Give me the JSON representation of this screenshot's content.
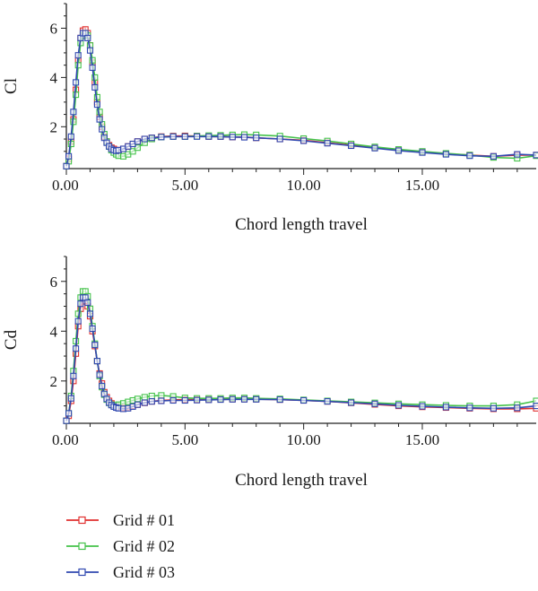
{
  "chart_data": [
    {
      "type": "line",
      "ylabel": "Cl",
      "xlabel": "Chord length travel",
      "xlim": [
        0,
        19.8
      ],
      "ylim": [
        0.3,
        7
      ],
      "x_ticks": [
        0,
        5,
        10,
        15
      ],
      "x_tick_labels": [
        "0.00",
        "5.00",
        "10.00",
        "15.00"
      ],
      "y_ticks": [
        2,
        4,
        6
      ],
      "y_tick_labels": [
        "2",
        "4",
        "6"
      ],
      "grid": false,
      "series": [
        {
          "name": "Grid # 01",
          "color": "#e0302f",
          "x": [
            0.0,
            0.1,
            0.2,
            0.3,
            0.4,
            0.5,
            0.6,
            0.7,
            0.8,
            0.9,
            1.0,
            1.1,
            1.2,
            1.3,
            1.4,
            1.5,
            1.6,
            1.7,
            1.8,
            1.9,
            2.0,
            2.1,
            2.2,
            2.4,
            2.6,
            2.8,
            3.0,
            3.3,
            3.6,
            4.0,
            4.5,
            5.0,
            5.5,
            6.0,
            6.5,
            7.0,
            7.5,
            8.0,
            9.0,
            10.0,
            11.0,
            12.0,
            13.0,
            14.0,
            15.0,
            16.0,
            17.0,
            18.0,
            19.0,
            19.8
          ],
          "y": [
            0.4,
            0.7,
            1.4,
            2.3,
            3.5,
            4.7,
            5.6,
            5.9,
            5.95,
            5.8,
            5.3,
            4.6,
            3.8,
            3.0,
            2.4,
            2.0,
            1.6,
            1.4,
            1.25,
            1.15,
            1.1,
            1.05,
            1.05,
            1.1,
            1.2,
            1.3,
            1.4,
            1.5,
            1.55,
            1.6,
            1.62,
            1.63,
            1.62,
            1.6,
            1.6,
            1.58,
            1.58,
            1.55,
            1.5,
            1.45,
            1.35,
            1.25,
            1.15,
            1.05,
            0.98,
            0.9,
            0.85,
            0.8,
            0.85,
            0.85
          ]
        },
        {
          "name": "Grid # 02",
          "color": "#44c24a",
          "x": [
            0.0,
            0.1,
            0.2,
            0.3,
            0.4,
            0.5,
            0.6,
            0.7,
            0.8,
            0.9,
            1.0,
            1.1,
            1.2,
            1.3,
            1.4,
            1.5,
            1.6,
            1.7,
            1.8,
            1.9,
            2.0,
            2.1,
            2.2,
            2.4,
            2.6,
            2.8,
            3.0,
            3.3,
            3.6,
            4.0,
            4.5,
            5.0,
            5.5,
            6.0,
            6.5,
            7.0,
            7.5,
            8.0,
            9.0,
            10.0,
            11.0,
            12.0,
            13.0,
            14.0,
            15.0,
            16.0,
            17.0,
            18.0,
            19.0,
            19.8
          ],
          "y": [
            0.4,
            0.6,
            1.3,
            2.2,
            3.3,
            4.5,
            5.4,
            5.7,
            5.8,
            5.7,
            5.3,
            4.7,
            4.0,
            3.2,
            2.6,
            2.1,
            1.7,
            1.4,
            1.2,
            1.05,
            0.95,
            0.88,
            0.82,
            0.8,
            0.88,
            1.0,
            1.15,
            1.35,
            1.5,
            1.58,
            1.6,
            1.6,
            1.62,
            1.64,
            1.65,
            1.67,
            1.68,
            1.67,
            1.62,
            1.52,
            1.42,
            1.3,
            1.18,
            1.08,
            1.0,
            0.92,
            0.85,
            0.75,
            0.72,
            0.82
          ]
        },
        {
          "name": "Grid # 03",
          "color": "#3048b0",
          "x": [
            0.0,
            0.1,
            0.2,
            0.3,
            0.4,
            0.5,
            0.6,
            0.7,
            0.8,
            0.9,
            1.0,
            1.1,
            1.2,
            1.3,
            1.4,
            1.5,
            1.6,
            1.7,
            1.8,
            1.9,
            2.0,
            2.1,
            2.2,
            2.4,
            2.6,
            2.8,
            3.0,
            3.3,
            3.6,
            4.0,
            4.5,
            5.0,
            5.5,
            6.0,
            6.5,
            7.0,
            7.5,
            8.0,
            9.0,
            10.0,
            11.0,
            12.0,
            13.0,
            14.0,
            15.0,
            16.0,
            17.0,
            18.0,
            19.0,
            19.8
          ],
          "y": [
            0.4,
            0.8,
            1.6,
            2.6,
            3.8,
            4.9,
            5.6,
            5.8,
            5.8,
            5.6,
            5.1,
            4.4,
            3.6,
            2.9,
            2.3,
            1.9,
            1.55,
            1.35,
            1.2,
            1.1,
            1.05,
            1.02,
            1.05,
            1.1,
            1.2,
            1.3,
            1.4,
            1.5,
            1.55,
            1.58,
            1.6,
            1.6,
            1.6,
            1.6,
            1.6,
            1.58,
            1.57,
            1.55,
            1.5,
            1.43,
            1.33,
            1.23,
            1.13,
            1.03,
            0.95,
            0.88,
            0.82,
            0.8,
            0.88,
            0.85
          ]
        }
      ]
    },
    {
      "type": "line",
      "ylabel": "Cd",
      "xlabel": "Chord length travel",
      "xlim": [
        0,
        19.8
      ],
      "ylim": [
        0.3,
        7
      ],
      "x_ticks": [
        0,
        5,
        10,
        15
      ],
      "x_tick_labels": [
        "0.00",
        "5.00",
        "10.00",
        "15.00"
      ],
      "y_ticks": [
        2,
        4,
        6
      ],
      "y_tick_labels": [
        "2",
        "4",
        "6"
      ],
      "grid": false,
      "series": [
        {
          "name": "Grid # 01",
          "color": "#e0302f",
          "x": [
            0.0,
            0.1,
            0.2,
            0.3,
            0.4,
            0.5,
            0.6,
            0.7,
            0.8,
            0.9,
            1.0,
            1.1,
            1.2,
            1.3,
            1.4,
            1.5,
            1.6,
            1.7,
            1.8,
            1.9,
            2.0,
            2.1,
            2.2,
            2.4,
            2.6,
            2.8,
            3.0,
            3.3,
            3.6,
            4.0,
            4.5,
            5.0,
            5.5,
            6.0,
            6.5,
            7.0,
            7.5,
            8.0,
            9.0,
            10.0,
            11.0,
            12.0,
            13.0,
            14.0,
            15.0,
            16.0,
            17.0,
            18.0,
            19.0,
            19.8
          ],
          "y": [
            0.4,
            0.6,
            1.2,
            2.0,
            3.1,
            4.2,
            4.9,
            5.2,
            5.2,
            5.0,
            4.6,
            4.0,
            3.4,
            2.8,
            2.3,
            1.9,
            1.55,
            1.35,
            1.2,
            1.1,
            1.02,
            0.98,
            0.95,
            0.92,
            0.95,
            1.0,
            1.05,
            1.12,
            1.18,
            1.22,
            1.24,
            1.25,
            1.25,
            1.26,
            1.26,
            1.27,
            1.27,
            1.27,
            1.25,
            1.22,
            1.18,
            1.12,
            1.06,
            1.0,
            0.96,
            0.93,
            0.9,
            0.88,
            0.88,
            0.9
          ]
        },
        {
          "name": "Grid # 02",
          "color": "#44c24a",
          "x": [
            0.0,
            0.1,
            0.2,
            0.3,
            0.4,
            0.5,
            0.6,
            0.7,
            0.8,
            0.9,
            1.0,
            1.1,
            1.2,
            1.3,
            1.4,
            1.5,
            1.6,
            1.7,
            1.8,
            1.9,
            2.0,
            2.1,
            2.2,
            2.4,
            2.6,
            2.8,
            3.0,
            3.3,
            3.6,
            4.0,
            4.5,
            5.0,
            5.5,
            6.0,
            6.5,
            7.0,
            7.5,
            8.0,
            9.0,
            10.0,
            11.0,
            12.0,
            13.0,
            14.0,
            15.0,
            16.0,
            17.0,
            18.0,
            19.0,
            19.8
          ],
          "y": [
            0.4,
            0.7,
            1.4,
            2.4,
            3.6,
            4.7,
            5.35,
            5.6,
            5.6,
            5.4,
            4.9,
            4.2,
            3.5,
            2.8,
            2.2,
            1.75,
            1.45,
            1.25,
            1.12,
            1.05,
            1.02,
            1.02,
            1.05,
            1.1,
            1.16,
            1.22,
            1.28,
            1.35,
            1.4,
            1.42,
            1.38,
            1.32,
            1.3,
            1.3,
            1.3,
            1.32,
            1.32,
            1.3,
            1.28,
            1.24,
            1.2,
            1.16,
            1.12,
            1.08,
            1.05,
            1.02,
            1.0,
            1.0,
            1.05,
            1.2
          ]
        },
        {
          "name": "Grid # 03",
          "color": "#3048b0",
          "x": [
            0.0,
            0.1,
            0.2,
            0.3,
            0.4,
            0.5,
            0.6,
            0.7,
            0.8,
            0.9,
            1.0,
            1.1,
            1.2,
            1.3,
            1.4,
            1.5,
            1.6,
            1.7,
            1.8,
            1.9,
            2.0,
            2.1,
            2.2,
            2.4,
            2.6,
            2.8,
            3.0,
            3.3,
            3.6,
            4.0,
            4.5,
            5.0,
            5.5,
            6.0,
            6.5,
            7.0,
            7.5,
            8.0,
            9.0,
            10.0,
            11.0,
            12.0,
            13.0,
            14.0,
            15.0,
            16.0,
            17.0,
            18.0,
            19.0,
            19.8
          ],
          "y": [
            0.4,
            0.7,
            1.3,
            2.2,
            3.3,
            4.4,
            5.1,
            5.35,
            5.35,
            5.15,
            4.7,
            4.1,
            3.45,
            2.8,
            2.25,
            1.8,
            1.48,
            1.28,
            1.13,
            1.03,
            0.97,
            0.93,
            0.9,
            0.88,
            0.9,
            0.97,
            1.05,
            1.13,
            1.18,
            1.2,
            1.22,
            1.22,
            1.23,
            1.24,
            1.25,
            1.26,
            1.26,
            1.26,
            1.25,
            1.22,
            1.18,
            1.13,
            1.08,
            1.02,
            0.98,
            0.95,
            0.92,
            0.9,
            0.92,
            1.0
          ]
        }
      ]
    }
  ],
  "legend": {
    "placement": "bottom-left",
    "items": [
      {
        "label": "Grid # 01",
        "color": "#e0302f",
        "marker": "square"
      },
      {
        "label": "Grid # 02",
        "color": "#44c24a",
        "marker": "square"
      },
      {
        "label": "Grid # 03",
        "color": "#3048b0",
        "marker": "square"
      }
    ]
  }
}
